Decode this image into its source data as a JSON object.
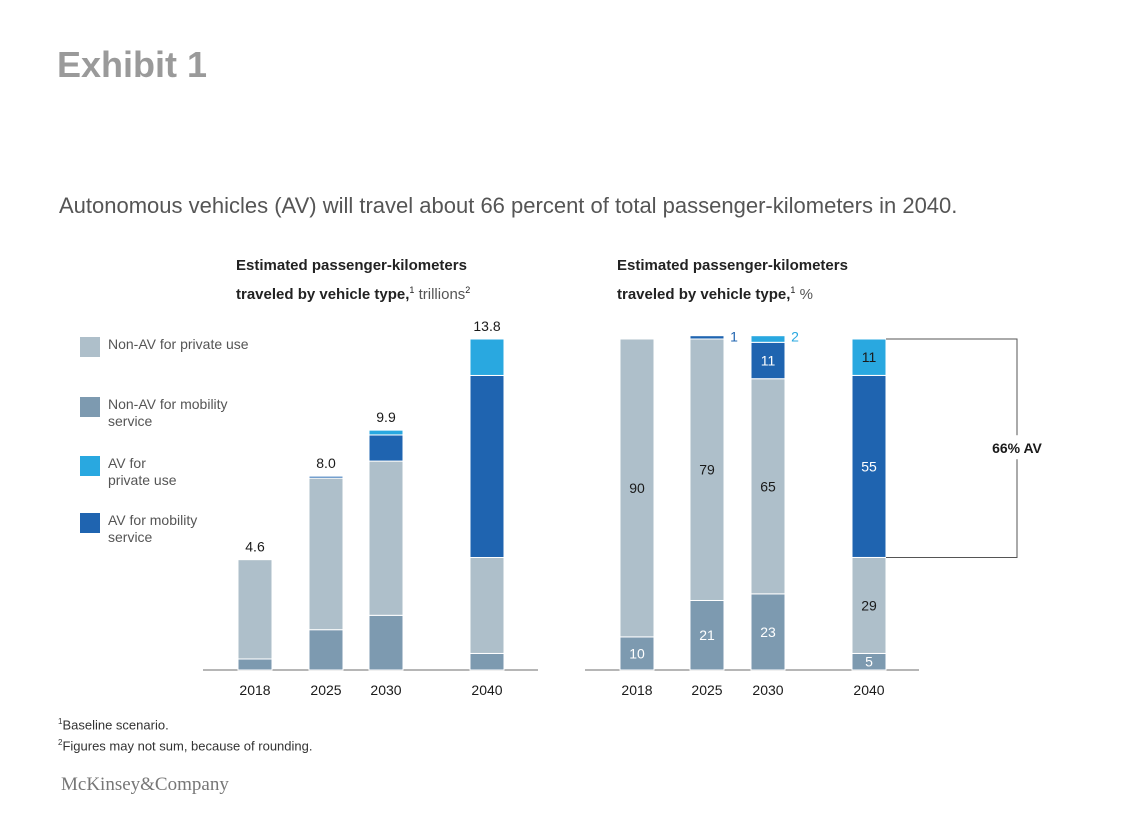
{
  "exhibit_label": "Exhibit 1",
  "headline": "Autonomous vehicles (AV) will travel about 66 percent of total passenger-kilometers in 2040.",
  "legend": [
    {
      "label": "Non-AV for private use",
      "color": "#aebfca"
    },
    {
      "label": "Non-AV for mobility service",
      "color": "#7d9ab0"
    },
    {
      "label": "AV for private use",
      "color": "#29a8e0"
    },
    {
      "label": "AV for mobility service",
      "color": "#1f64b0"
    }
  ],
  "chart_data": [
    {
      "type": "bar",
      "stacked": true,
      "title_line1": "Estimated passenger-kilometers",
      "title_line2": "traveled by vehicle type,",
      "title_fn1": "1",
      "title_unit": " trillions",
      "title_fn2": "2",
      "categories": [
        "2018",
        "2025",
        "2030",
        "2040"
      ],
      "totals": [
        4.6,
        8.0,
        9.9,
        13.8
      ],
      "total_labels": [
        "4.6",
        "8.0",
        "9.9",
        "13.8"
      ],
      "ylim": [
        0,
        13.8
      ],
      "series": [
        {
          "name": "Non-AV for mobility service",
          "values": [
            0.46,
            1.68,
            2.28,
            0.69
          ]
        },
        {
          "name": "Non-AV for private use",
          "values": [
            4.14,
            6.32,
            6.43,
            4.0
          ]
        },
        {
          "name": "AV for mobility service",
          "values": [
            0,
            0.08,
            1.09,
            7.59
          ]
        },
        {
          "name": "AV for private use",
          "values": [
            0,
            0,
            0.2,
            1.52
          ]
        }
      ]
    },
    {
      "type": "bar",
      "stacked": true,
      "percent": true,
      "title_line1": "Estimated passenger-kilometers",
      "title_line2": "traveled by vehicle type,",
      "title_fn1": "1",
      "title_unit": " %",
      "categories": [
        "2018",
        "2025",
        "2030",
        "2040"
      ],
      "ylim": [
        0,
        100
      ],
      "series": [
        {
          "name": "Non-AV for mobility service",
          "values": [
            10,
            21,
            23,
            5
          ]
        },
        {
          "name": "Non-AV for private use",
          "values": [
            90,
            79,
            65,
            29
          ]
        },
        {
          "name": "AV for mobility service",
          "values": [
            0,
            1,
            11,
            55
          ]
        },
        {
          "name": "AV for private use",
          "values": [
            0,
            0,
            2,
            11
          ]
        }
      ],
      "bracket_label": "66% AV"
    }
  ],
  "footnotes": [
    {
      "mark": "1",
      "text": "Baseline scenario."
    },
    {
      "mark": "2",
      "text": "Figures may not sum, because of rounding."
    }
  ],
  "brand": "McKinsey&Company"
}
